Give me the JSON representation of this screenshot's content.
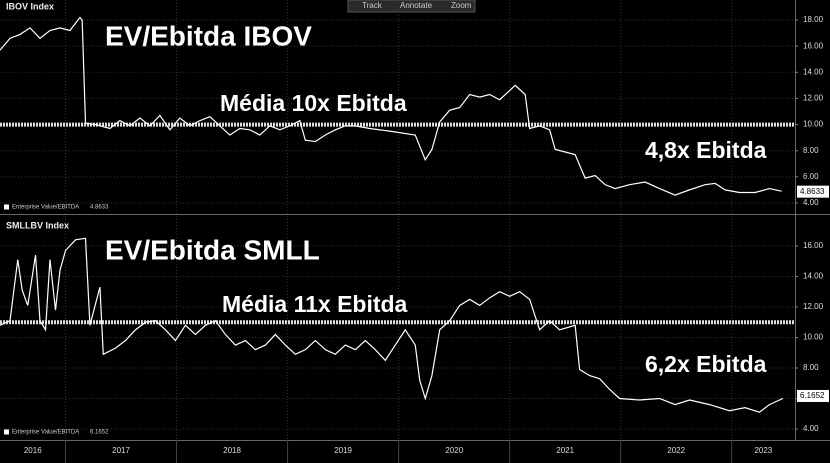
{
  "toolbar": {
    "buttons": [
      "Track",
      "Annotate",
      "Zoom"
    ]
  },
  "chart_data": [
    {
      "type": "line",
      "index_label": "IBOV Index",
      "title": "EV/Ebitda IBOV",
      "annotations": [
        "Média 10x Ebitda",
        "4,8x Ebitda"
      ],
      "hline": 10,
      "x": [
        2016.41,
        2016.5,
        2016.59,
        2016.68,
        2016.77,
        2016.86,
        2016.95,
        2017.04,
        2017.13,
        2017.15,
        2017.18,
        2017.27,
        2017.4,
        2017.49,
        2017.58,
        2017.67,
        2017.76,
        2017.85,
        2017.94,
        2018.03,
        2018.12,
        2018.21,
        2018.3,
        2018.39,
        2018.48,
        2018.57,
        2018.66,
        2018.75,
        2018.84,
        2018.93,
        2019.02,
        2019.11,
        2019.16,
        2019.25,
        2019.34,
        2019.43,
        2019.52,
        2019.61,
        2019.74,
        2019.92,
        2020.15,
        2020.24,
        2020.3,
        2020.37,
        2020.46,
        2020.55,
        2020.64,
        2020.73,
        2020.82,
        2020.91,
        2021.0,
        2021.05,
        2021.14,
        2021.18,
        2021.27,
        2021.36,
        2021.41,
        2021.5,
        2021.59,
        2021.68,
        2021.77,
        2021.86,
        2021.95,
        2022.08,
        2022.22,
        2022.35,
        2022.49,
        2022.62,
        2022.76,
        2022.85,
        2022.94,
        2023.07,
        2023.21,
        2023.34,
        2023.45
      ],
      "series": [
        {
          "name": "Enterprise Value/EBITDA",
          "color": "#ffffff",
          "last_value": 4.8633,
          "values": [
            15.7,
            16.6,
            16.9,
            17.4,
            16.6,
            17.2,
            17.4,
            17.2,
            18.2,
            18.0,
            10.1,
            10.0,
            9.7,
            10.3,
            9.9,
            10.5,
            9.9,
            10.7,
            9.6,
            10.5,
            9.9,
            10.3,
            10.6,
            9.9,
            9.2,
            9.7,
            9.6,
            9.2,
            9.9,
            9.6,
            9.9,
            10.3,
            8.8,
            8.7,
            9.2,
            9.6,
            9.9,
            9.9,
            9.7,
            9.5,
            9.2,
            7.3,
            8.1,
            10.2,
            11.1,
            11.3,
            12.3,
            12.1,
            12.3,
            11.9,
            12.6,
            13.0,
            12.3,
            9.7,
            9.9,
            9.6,
            8.1,
            7.9,
            7.7,
            5.9,
            6.1,
            5.4,
            5.1,
            5.4,
            5.6,
            5.1,
            4.6,
            5.0,
            5.4,
            5.5,
            5.0,
            4.8,
            4.8,
            5.1,
            4.9
          ]
        }
      ],
      "xlim": [
        2016.41,
        2023.57
      ],
      "xticks": [
        2017,
        2018,
        2019,
        2020,
        2021,
        2022,
        2023
      ],
      "ylim": [
        3.23,
        18.77
      ],
      "yticks": [
        {
          "value": 4,
          "label": "4.00"
        },
        {
          "value": 6,
          "label": "6.00"
        },
        {
          "value": 8,
          "label": "8.00"
        },
        {
          "value": 10,
          "label": "10.00"
        },
        {
          "value": 12,
          "label": "12.00"
        },
        {
          "value": 14,
          "label": "14.00"
        },
        {
          "value": 16,
          "label": "16.00"
        },
        {
          "value": 18,
          "label": "18.00"
        }
      ],
      "grid": true
    },
    {
      "type": "line",
      "index_label": "SMLLBV Index",
      "title": "EV/Ebitda SMLL",
      "annotations": [
        "Média 11x Ebitda",
        "6,2x Ebitda"
      ],
      "hline": 11,
      "x": [
        2016.41,
        2016.5,
        2016.57,
        2016.61,
        2016.66,
        2016.73,
        2016.77,
        2016.82,
        2016.86,
        2016.91,
        2016.95,
        2017.0,
        2017.09,
        2017.18,
        2017.22,
        2017.31,
        2017.34,
        2017.45,
        2017.54,
        2017.63,
        2017.72,
        2017.81,
        2017.9,
        2017.99,
        2018.08,
        2018.17,
        2018.26,
        2018.35,
        2018.44,
        2018.53,
        2018.62,
        2018.71,
        2018.8,
        2018.89,
        2018.98,
        2019.07,
        2019.16,
        2019.25,
        2019.34,
        2019.43,
        2019.52,
        2019.61,
        2019.7,
        2019.79,
        2019.88,
        2019.97,
        2020.06,
        2020.15,
        2020.19,
        2020.24,
        2020.3,
        2020.37,
        2020.46,
        2020.55,
        2020.64,
        2020.73,
        2020.82,
        2020.91,
        2021.0,
        2021.09,
        2021.18,
        2021.27,
        2021.36,
        2021.45,
        2021.59,
        2021.63,
        2021.72,
        2021.81,
        2021.9,
        2021.99,
        2022.17,
        2022.35,
        2022.49,
        2022.62,
        2022.8,
        2022.98,
        2023.12,
        2023.25,
        2023.34,
        2023.46
      ],
      "series": [
        {
          "name": "Enterprise Value/EBITDA",
          "color": "#ffffff",
          "last_value": 6.1652,
          "values": [
            10.8,
            11.1,
            15.1,
            13.1,
            12.1,
            15.4,
            11.1,
            10.5,
            15.1,
            11.8,
            14.4,
            15.7,
            16.4,
            16.5,
            10.8,
            13.3,
            8.9,
            9.3,
            9.8,
            10.5,
            11.0,
            11.1,
            10.5,
            9.8,
            10.8,
            10.2,
            10.8,
            11.1,
            10.2,
            9.5,
            9.8,
            9.2,
            9.5,
            10.2,
            9.5,
            8.9,
            9.2,
            9.8,
            9.2,
            8.9,
            9.5,
            9.2,
            9.8,
            9.2,
            8.5,
            9.5,
            10.5,
            9.5,
            7.2,
            6.0,
            7.5,
            10.5,
            11.1,
            12.1,
            12.5,
            12.1,
            12.6,
            13.0,
            12.7,
            13.0,
            12.5,
            10.5,
            11.1,
            10.5,
            10.8,
            7.9,
            7.5,
            7.3,
            6.6,
            6.0,
            5.9,
            6.0,
            5.6,
            5.9,
            5.6,
            5.2,
            5.4,
            5.1,
            5.6,
            6.0
          ]
        }
      ],
      "xlim": [
        2016.41,
        2023.57
      ],
      "xticks": [
        2017,
        2018,
        2019,
        2020,
        2021,
        2022,
        2023
      ],
      "xtick_labels": [
        "2016",
        "2017",
        "2018",
        "2019",
        "2020",
        "2021",
        "2022",
        "2023"
      ],
      "ylim": [
        3.28,
        17.7
      ],
      "yticks": [
        {
          "value": 4,
          "label": "4.00"
        },
        {
          "value": 6,
          "label": "6.00"
        },
        {
          "value": 8,
          "label": "8.00"
        },
        {
          "value": 10,
          "label": "10.00"
        },
        {
          "value": 12,
          "label": "12.00"
        },
        {
          "value": 14,
          "label": "14.00"
        },
        {
          "value": 16,
          "label": "16.00"
        }
      ],
      "grid": true
    }
  ]
}
